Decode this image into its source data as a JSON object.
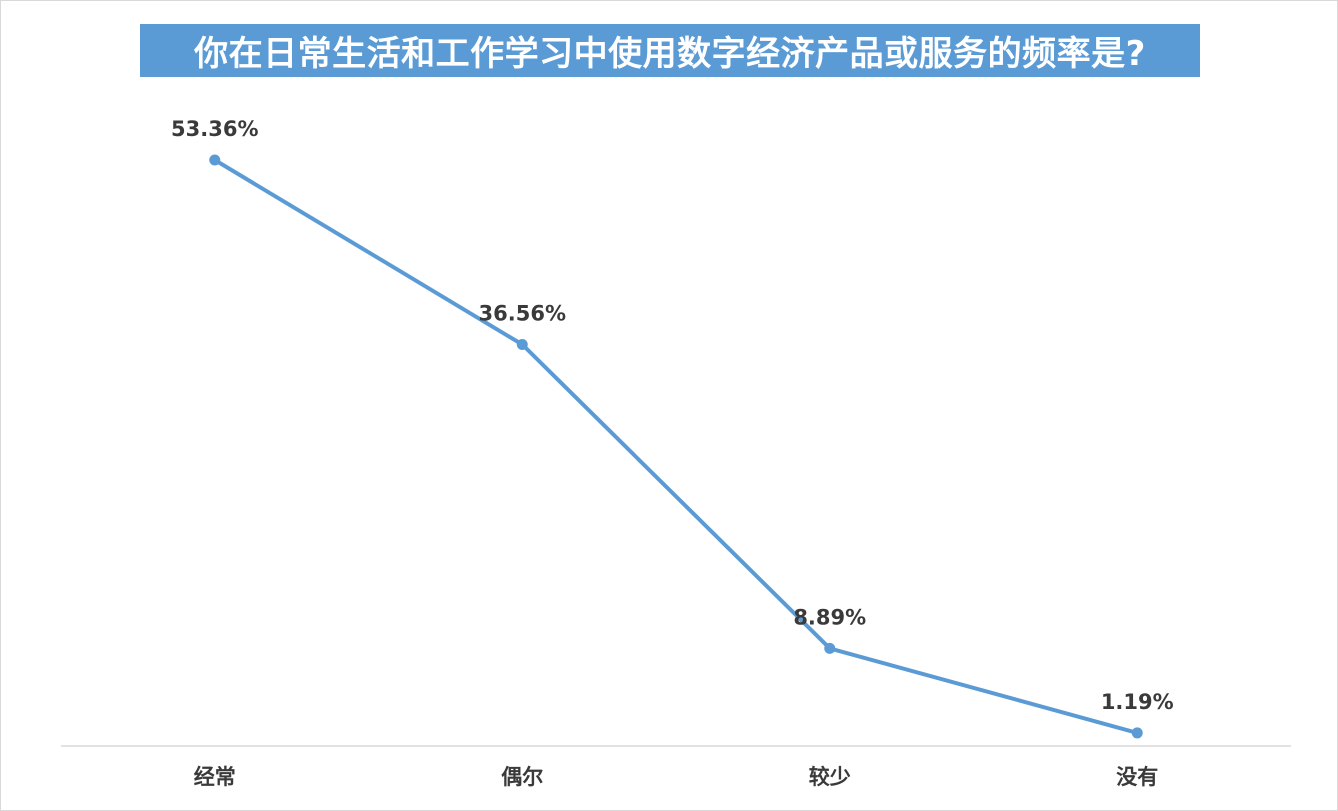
{
  "chart_data": {
    "type": "line",
    "title": "你在日常生活和工作学习中使用数字经济产品或服务的频率是?",
    "categories": [
      "经常",
      "偶尔",
      "较少",
      "没有"
    ],
    "values": [
      53.36,
      36.56,
      8.89,
      1.19
    ],
    "data_labels": [
      "53.36%",
      "36.56%",
      "8.89%",
      "1.19%"
    ],
    "unit": "%",
    "ylim": [
      0,
      55
    ],
    "grid": false,
    "legend": "none",
    "line_color": "#5b9bd5",
    "title_background": "#5b9bd5"
  }
}
